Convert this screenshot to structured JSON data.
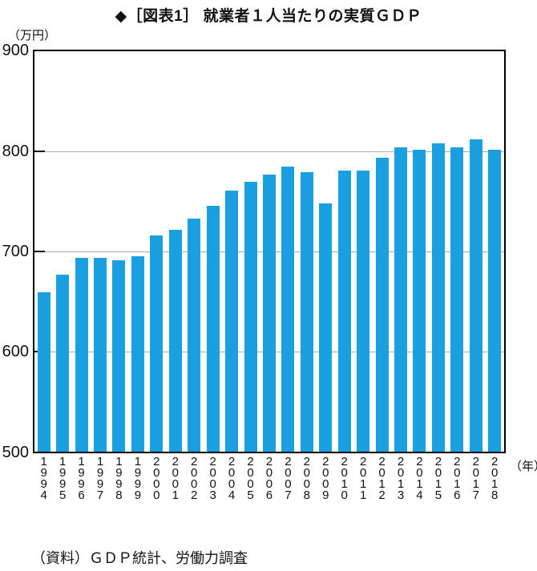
{
  "caption": "（資料）ＧＤＰ統計、労働力調査",
  "chart_data": {
    "type": "bar",
    "title": "◆［図表1］ 就業者１人当たりの実質ＧＤＰ",
    "y_unit_label": "（万円）",
    "x_unit_label": "（年）",
    "ylabel": "",
    "xlabel": "",
    "ylim": [
      500,
      900
    ],
    "y_ticks": [
      900,
      800,
      700,
      600,
      500
    ],
    "grid": "horizontal-gridlines-at-600-700-800",
    "legend": "none",
    "bar_color": "#1AA0E1",
    "gridline_color": "#a9a9a9",
    "axis_color": "#000000",
    "categories": [
      "1994",
      "1995",
      "1996",
      "1997",
      "1998",
      "1999",
      "2000",
      "2001",
      "2002",
      "2003",
      "2004",
      "2005",
      "2006",
      "2007",
      "2008",
      "2009",
      "2010",
      "2011",
      "2012",
      "2013",
      "2014",
      "2015",
      "2016",
      "2017",
      "2018"
    ],
    "values": [
      659,
      677,
      694,
      694,
      691,
      695,
      716,
      722,
      733,
      746,
      761,
      770,
      777,
      785,
      779,
      748,
      781,
      781,
      794,
      804,
      802,
      808,
      804,
      812,
      802
    ]
  }
}
